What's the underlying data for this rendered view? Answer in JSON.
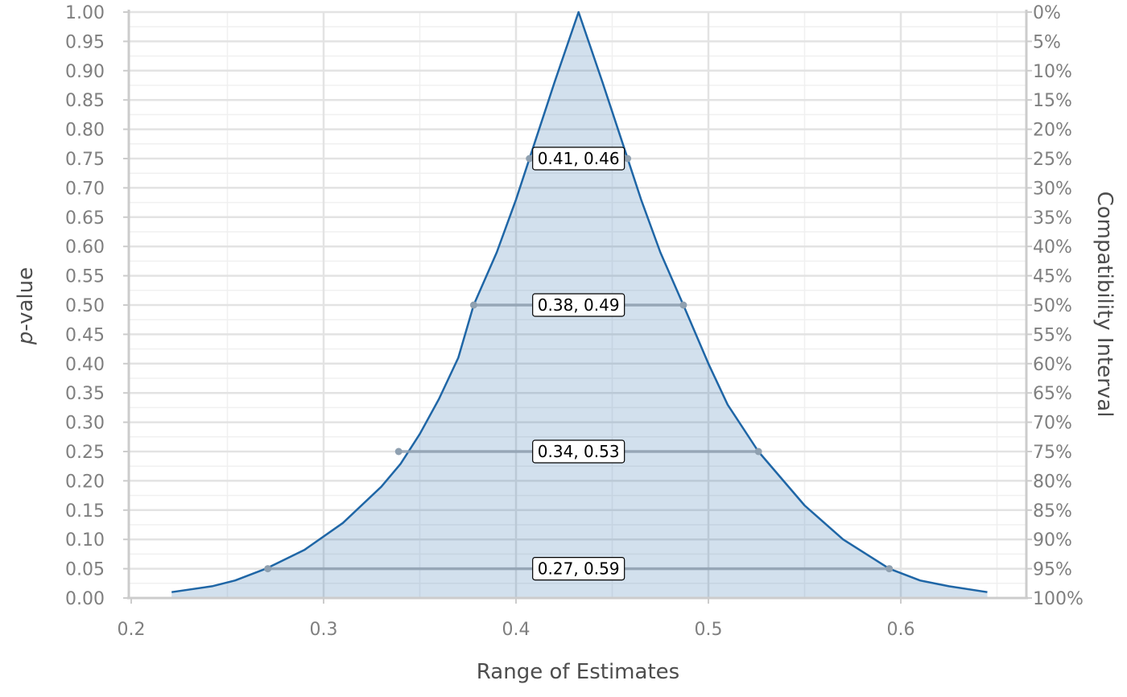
{
  "chart_data": {
    "type": "area",
    "title": "",
    "xlabel": "Range of Estimates",
    "ylabel_italic": "p",
    "ylabel_rest": "-value",
    "y2label": "Compatibility Interval",
    "xlim": [
      0.2,
      0.665
    ],
    "ylim": [
      0,
      1
    ],
    "grid": true,
    "x_ticks": [
      {
        "value": 0.2,
        "label": "0.2"
      },
      {
        "value": 0.3,
        "label": "0.3"
      },
      {
        "value": 0.4,
        "label": "0.4"
      },
      {
        "value": 0.5,
        "label": "0.5"
      },
      {
        "value": 0.6,
        "label": "0.6"
      }
    ],
    "y_ticks": [
      {
        "value": 1.0,
        "label": "1.00"
      },
      {
        "value": 0.95,
        "label": "0.95"
      },
      {
        "value": 0.9,
        "label": "0.90"
      },
      {
        "value": 0.85,
        "label": "0.85"
      },
      {
        "value": 0.8,
        "label": "0.80"
      },
      {
        "value": 0.75,
        "label": "0.75"
      },
      {
        "value": 0.7,
        "label": "0.70"
      },
      {
        "value": 0.65,
        "label": "0.65"
      },
      {
        "value": 0.6,
        "label": "0.60"
      },
      {
        "value": 0.55,
        "label": "0.55"
      },
      {
        "value": 0.5,
        "label": "0.50"
      },
      {
        "value": 0.45,
        "label": "0.45"
      },
      {
        "value": 0.4,
        "label": "0.40"
      },
      {
        "value": 0.35,
        "label": "0.35"
      },
      {
        "value": 0.3,
        "label": "0.30"
      },
      {
        "value": 0.25,
        "label": "0.25"
      },
      {
        "value": 0.2,
        "label": "0.20"
      },
      {
        "value": 0.15,
        "label": "0.15"
      },
      {
        "value": 0.1,
        "label": "0.10"
      },
      {
        "value": 0.05,
        "label": "0.05"
      },
      {
        "value": 0.0,
        "label": "0.00"
      }
    ],
    "y2_ticks": [
      {
        "value": 1.0,
        "label": "0%"
      },
      {
        "value": 0.95,
        "label": "5%"
      },
      {
        "value": 0.9,
        "label": "10%"
      },
      {
        "value": 0.85,
        "label": "15%"
      },
      {
        "value": 0.8,
        "label": "20%"
      },
      {
        "value": 0.75,
        "label": "25%"
      },
      {
        "value": 0.7,
        "label": "30%"
      },
      {
        "value": 0.65,
        "label": "35%"
      },
      {
        "value": 0.6,
        "label": "40%"
      },
      {
        "value": 0.55,
        "label": "45%"
      },
      {
        "value": 0.5,
        "label": "50%"
      },
      {
        "value": 0.45,
        "label": "55%"
      },
      {
        "value": 0.4,
        "label": "60%"
      },
      {
        "value": 0.35,
        "label": "65%"
      },
      {
        "value": 0.3,
        "label": "70%"
      },
      {
        "value": 0.25,
        "label": "75%"
      },
      {
        "value": 0.2,
        "label": "80%"
      },
      {
        "value": 0.15,
        "label": "85%"
      },
      {
        "value": 0.1,
        "label": "90%"
      },
      {
        "value": 0.05,
        "label": "95%"
      },
      {
        "value": 0.0,
        "label": "100%"
      }
    ],
    "series": [
      {
        "x": [
          0.221,
          0.242,
          0.254,
          0.27,
          0.29,
          0.31,
          0.33,
          0.34,
          0.35,
          0.36,
          0.37,
          0.378,
          0.39,
          0.4,
          0.41,
          0.42,
          0.4325,
          0.445,
          0.455,
          0.465,
          0.475,
          0.487,
          0.5,
          0.51,
          0.526,
          0.55,
          0.57,
          0.594,
          0.61,
          0.625,
          0.645
        ],
        "y": [
          0.01,
          0.02,
          0.03,
          0.05,
          0.082,
          0.128,
          0.19,
          0.229,
          0.28,
          0.34,
          0.41,
          0.5,
          0.59,
          0.68,
          0.78,
          0.88,
          1.0,
          0.88,
          0.78,
          0.68,
          0.59,
          0.5,
          0.4,
          0.33,
          0.25,
          0.158,
          0.1,
          0.05,
          0.03,
          0.02,
          0.01
        ]
      }
    ],
    "intervals": [
      {
        "p": 0.75,
        "lower": 0.407,
        "upper": 0.458,
        "label": "0.41, 0.46"
      },
      {
        "p": 0.5,
        "lower": 0.378,
        "upper": 0.487,
        "label": "0.38, 0.49"
      },
      {
        "p": 0.25,
        "lower": 0.339,
        "upper": 0.526,
        "label": "0.34, 0.53"
      },
      {
        "p": 0.05,
        "lower": 0.271,
        "upper": 0.594,
        "label": "0.27, 0.59"
      }
    ],
    "colors": {
      "line": "#1f66a6",
      "fill": "#1f66a6",
      "interval": "#8fa0b0",
      "grid_major": "#e3e3e3",
      "grid_minor": "#f0f0f0",
      "axis": "#cccccc"
    }
  }
}
